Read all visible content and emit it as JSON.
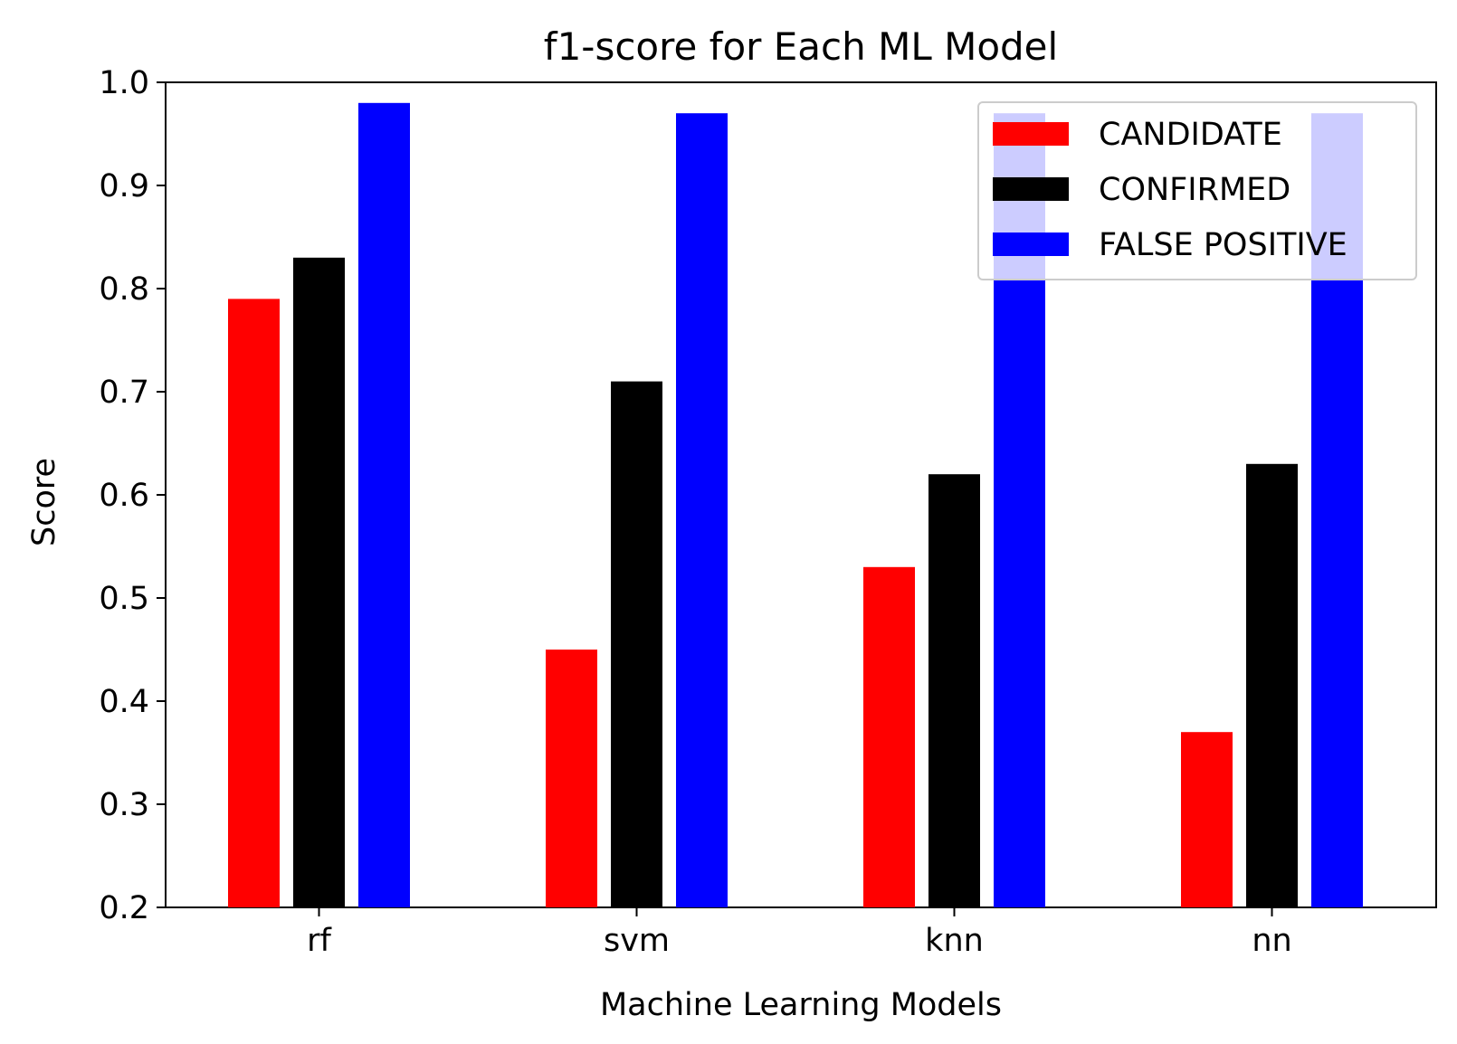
{
  "chart_data": {
    "type": "bar",
    "title": "f1-score for Each ML Model",
    "xlabel": "Machine Learning Models",
    "ylabel": "Score",
    "categories": [
      "rf",
      "svm",
      "knn",
      "nn"
    ],
    "ylim": [
      0.2,
      1.0
    ],
    "yticks": [
      0.2,
      0.3,
      0.4,
      0.5,
      0.6,
      0.7,
      0.8,
      0.9,
      1.0
    ],
    "ytick_labels": [
      "0.2",
      "0.3",
      "0.4",
      "0.5",
      "0.6",
      "0.7",
      "0.8",
      "0.9",
      "1.0"
    ],
    "grid": false,
    "legend_position": "top-right",
    "series": [
      {
        "name": "CANDIDATE",
        "color": "#ff0000",
        "values": [
          0.79,
          0.45,
          0.53,
          0.37
        ]
      },
      {
        "name": "CONFIRMED",
        "color": "#000000",
        "values": [
          0.83,
          0.71,
          0.62,
          0.63
        ]
      },
      {
        "name": "FALSE POSITIVE",
        "color": "#0000ff",
        "values": [
          0.98,
          0.97,
          0.97,
          0.97
        ]
      }
    ]
  }
}
